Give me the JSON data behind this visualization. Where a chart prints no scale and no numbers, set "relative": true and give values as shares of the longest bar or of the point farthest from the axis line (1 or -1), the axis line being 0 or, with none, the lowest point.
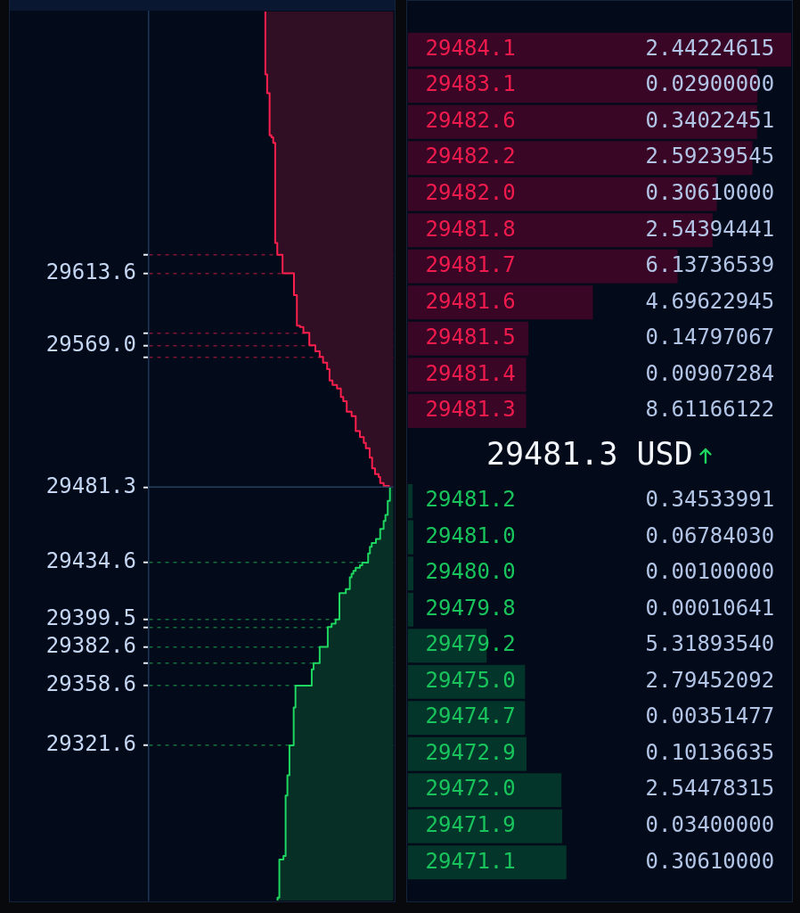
{
  "chart_data": [
    {
      "type": "area",
      "orientation": "horizontal",
      "relative": true,
      "grid": "y",
      "ylim": [
        29225.7,
        29775.5
      ],
      "yticks": [
        {
          "value": 29625.0,
          "label": null
        },
        29613.6,
        {
          "value": 29576.7,
          "label": null
        },
        {
          "value": 29569.0,
          "label": "29569.0"
        },
        {
          "value": 29561.8,
          "label": null
        },
        29481.3,
        29434.6,
        29399.5,
        {
          "value": 29394.8,
          "label": null
        },
        29382.6,
        {
          "value": 29372.5,
          "label": null
        },
        29358.6,
        29321.6
      ],
      "series": [
        {
          "color": "#ff1f4e",
          "x": [
            29481.3,
            29482.0,
            29482.0,
            29483.8,
            29483.8,
            29487.5,
            29487.5,
            29489.3,
            29489.3,
            29493.0,
            29493.0,
            29499.5,
            29499.5,
            29505.3,
            29505.3,
            29508.6,
            29508.6,
            29512.3,
            29512.3,
            29516.0,
            29516.0,
            29525.2,
            29525.2,
            29527.9,
            29527.9,
            29534.4,
            29534.4,
            29537.1,
            29537.1,
            29542.3,
            29542.3,
            29544.5,
            29544.5,
            29547.2,
            29547.2,
            29554.2,
            29554.2,
            29558.3,
            29558.3,
            29561.8,
            29561.8,
            29565.3,
            29565.3,
            29569.0,
            29569.0,
            29576.7,
            29576.7,
            29580.3,
            29580.3,
            29581.2,
            29581.2,
            29600.0,
            29600.0,
            29613.6,
            29613.6,
            29625.0,
            29625.0,
            29632.3,
            29632.3,
            29694.2,
            29694.2,
            29697.6,
            29697.6,
            29698.8,
            29698.8,
            29724.9,
            29724.9,
            29736.5,
            29736.5,
            29775.5
          ],
          "values": [
            -0.035,
            -0.035,
            -0.077,
            -0.077,
            -0.104,
            -0.104,
            -0.116,
            -0.116,
            -0.144,
            -0.144,
            -0.167,
            -0.167,
            -0.186,
            -0.186,
            -0.216,
            -0.216,
            -0.232,
            -0.232,
            -0.262,
            -0.262,
            -0.295,
            -0.295,
            -0.327,
            -0.327,
            -0.365,
            -0.365,
            -0.392,
            -0.392,
            -0.411,
            -0.411,
            -0.441,
            -0.441,
            -0.476,
            -0.476,
            -0.499,
            -0.499,
            -0.518,
            -0.518,
            -0.55,
            -0.55,
            -0.576,
            -0.576,
            -0.61,
            -0.61,
            -0.657,
            -0.657,
            -0.703,
            -0.703,
            -0.731,
            -0.731,
            -0.754,
            -0.754,
            -0.777,
            -0.777,
            -0.866,
            -0.866,
            -0.907,
            -0.907,
            -0.923,
            -0.923,
            -0.939,
            -0.939,
            -0.953,
            -0.953,
            -0.967,
            -0.967,
            -0.986,
            -0.986,
            -1,
            -1
          ]
        },
        {
          "color": "#1ed760",
          "x": [
            29481.3,
            29472.8,
            29472.8,
            29464.2,
            29464.2,
            29460.4,
            29460.4,
            29455.4,
            29455.4,
            29449.3,
            29449.3,
            29446.7,
            29446.7,
            29444.4,
            29444.4,
            29440.3,
            29440.3,
            29434.6,
            29434.6,
            29433.0,
            29433.0,
            29431.5,
            29431.5,
            29429.6,
            29429.6,
            29427.8,
            29427.8,
            29425.6,
            29425.6,
            29418.2,
            29418.2,
            29415.7,
            29415.7,
            29399.5,
            29399.5,
            29396.9,
            29396.9,
            29394.8,
            29394.8,
            29382.6,
            29382.6,
            29372.5,
            29372.5,
            29368.6,
            29368.6,
            29358.6,
            29358.6,
            29345.1,
            29345.1,
            29321.6,
            29321.6,
            29303.2,
            29303.2,
            29290.6,
            29290.6,
            29253.2,
            29253.2,
            29251.0,
            29251.0,
            29227.5,
            29227.5,
            29225.7
          ],
          "values": [
            -0.028,
            -0.028,
            -0.045,
            -0.045,
            -0.063,
            -0.063,
            -0.077,
            -0.077,
            -0.104,
            -0.104,
            -0.137,
            -0.137,
            -0.17,
            -0.17,
            -0.184,
            -0.184,
            -0.198,
            -0.198,
            -0.244,
            -0.244,
            -0.262,
            -0.262,
            -0.295,
            -0.295,
            -0.313,
            -0.313,
            -0.327,
            -0.327,
            -0.341,
            -0.341,
            -0.372,
            -0.372,
            -0.422,
            -0.422,
            -0.452,
            -0.452,
            -0.483,
            -0.483,
            -0.513,
            -0.513,
            -0.576,
            -0.576,
            -0.624,
            -0.624,
            -0.638,
            -0.638,
            -0.765,
            -0.765,
            -0.779,
            -0.779,
            -0.812,
            -0.812,
            -0.828,
            -0.828,
            -0.842,
            -0.842,
            -0.859,
            -0.859,
            -0.891,
            -0.891,
            -0.905,
            -0.905
          ]
        }
      ],
      "ref_lines": [
        {
          "axis": "y",
          "value": 29481.3,
          "color": "#25405f",
          "line_style": "solid"
        }
      ]
    },
    {
      "type": "bar",
      "orientation": "horizontal",
      "relative": true,
      "categories": [
        "29484.1",
        "29483.1",
        "29482.6",
        "29482.2",
        "29482.0",
        "29481.8",
        "29481.7",
        "29481.6",
        "29481.5",
        "29481.4",
        "29481.3",
        "29481.2",
        "29481.0",
        "29480.0",
        "29479.8",
        "29479.2",
        "29475.0",
        "29474.7",
        "29472.9",
        "29472.0",
        "29471.9",
        "29471.1"
      ],
      "y2_categories": [
        "2.44224615",
        "0.02900000",
        "0.34022451",
        "2.59239545",
        "0.30610000",
        "2.54394441",
        "6.13736539",
        "4.69622945",
        "0.14797067",
        "0.00907284",
        "8.61166122",
        "0.34533991",
        "0.06784030",
        "0.00100000",
        "0.00010641",
        "5.31893540",
        "2.79452092",
        "0.00351477",
        "0.10136635",
        "2.54478315",
        "0.03400000",
        "0.30610000"
      ],
      "series": [
        {
          "color": "#3a0626",
          "values": [
            1,
            0.912,
            0.911,
            0.899,
            0.806,
            0.795,
            0.704,
            0.483,
            0.315,
            0.309,
            0.309,
            null,
            null,
            null,
            null,
            null,
            null,
            null,
            null,
            null,
            null,
            null
          ]
        },
        {
          "color": "#04352a",
          "values": [
            null,
            null,
            null,
            null,
            null,
            null,
            null,
            null,
            null,
            null,
            null,
            0.013,
            0.015,
            0.015,
            0.015,
            0.206,
            0.306,
            0.306,
            0.31,
            0.401,
            0.403,
            0.414
          ]
        }
      ],
      "annotations": [
        "29481.3 USD"
      ]
    }
  ]
}
